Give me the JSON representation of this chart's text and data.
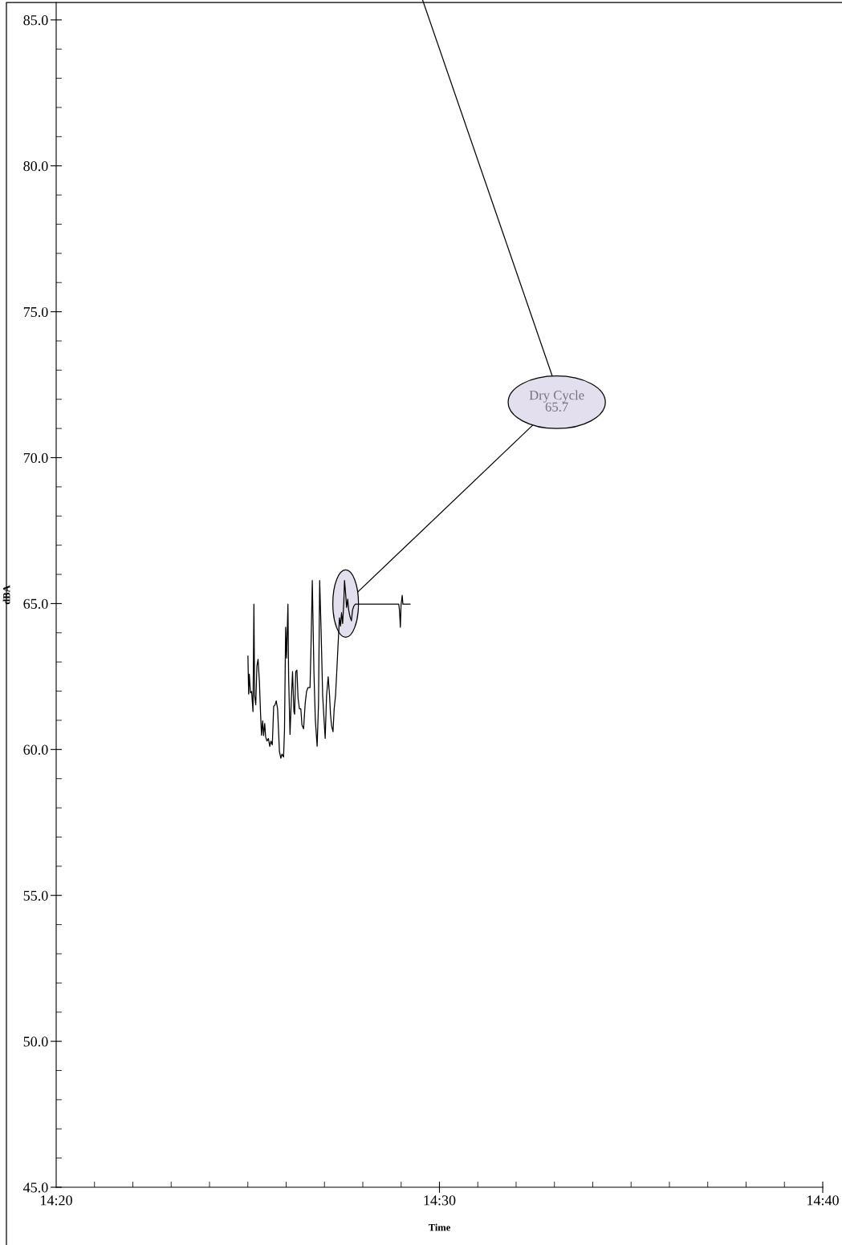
{
  "chart_data": {
    "type": "line",
    "xlabel": "Time",
    "ylabel": "dBA",
    "xlim": [
      14.3333,
      14.6667
    ],
    "ylim": [
      45,
      85.6
    ],
    "xticks": [
      {
        "value": 14.3333,
        "label": "14:20"
      },
      {
        "value": 14.5,
        "label": "14:30"
      },
      {
        "value": 14.6667,
        "label": "14:40"
      }
    ],
    "yticks": [
      {
        "value": 45,
        "label": "45.0"
      },
      {
        "value": 50,
        "label": "50.0"
      },
      {
        "value": 55,
        "label": "55.0"
      },
      {
        "value": 60,
        "label": "60.0"
      },
      {
        "value": 65,
        "label": "65.0"
      },
      {
        "value": 70,
        "label": "70.0"
      },
      {
        "value": 75,
        "label": "75.0"
      },
      {
        "value": 80,
        "label": "80.0"
      },
      {
        "value": 85,
        "label": "85.0"
      }
    ],
    "grid": false,
    "legend": false,
    "marker": "none",
    "line_style": "solid",
    "annotations": [
      {
        "text": "Dry Cycle\n65.7",
        "x": 14.4592,
        "y": 65.0
      }
    ],
    "series": [
      {
        "color": "#000000",
        "x": [
          14.4167,
          14.417,
          14.4173,
          14.4178,
          14.4183,
          14.4189,
          14.4193,
          14.4196,
          14.4201,
          14.4206,
          14.4211,
          14.4217,
          14.4222,
          14.4226,
          14.4231,
          14.4235,
          14.424,
          14.4244,
          14.425,
          14.4256,
          14.4262,
          14.4267,
          14.4273,
          14.4279,
          14.4285,
          14.429,
          14.4296,
          14.4304,
          14.431,
          14.4315,
          14.4322,
          14.4326,
          14.4331,
          14.4335,
          14.4341,
          14.4344,
          14.435,
          14.4356,
          14.4361,
          14.4367,
          14.437,
          14.4375,
          14.438,
          14.4385,
          14.4391,
          14.4397,
          14.4402,
          14.4409,
          14.4416,
          14.4422,
          14.4428,
          14.4437,
          14.4441,
          14.4447,
          14.4454,
          14.446,
          14.4468,
          14.4474,
          14.4479,
          14.4485,
          14.4492,
          14.4498,
          14.4503,
          14.4509,
          14.4516,
          14.4522,
          14.4526,
          14.4531,
          14.4537,
          14.4542,
          14.4548,
          14.4554,
          14.4559,
          14.4565,
          14.457,
          14.4574,
          14.4579,
          14.4584,
          14.4587,
          14.4592,
          14.4596,
          14.4601,
          14.4605,
          14.4611,
          14.4617,
          14.4622,
          14.4628,
          14.4634,
          14.4823,
          14.4826,
          14.483,
          14.4833,
          14.4838,
          14.4841,
          14.4872
        ],
        "values": [
          63.2,
          61.9,
          62.58,
          61.94,
          61.99,
          61.3,
          64.98,
          61.85,
          61.53,
          62.86,
          63.09,
          62.31,
          61.21,
          60.49,
          60.98,
          60.48,
          60.89,
          60.43,
          60.29,
          60.38,
          60.11,
          60.29,
          60.16,
          61.48,
          61.53,
          61.67,
          61.39,
          59.93,
          59.7,
          59.84,
          59.74,
          60.66,
          64.19,
          63.13,
          64.98,
          62.49,
          60.52,
          61.76,
          62.67,
          61.3,
          61.21,
          62.67,
          62.72,
          61.76,
          61.39,
          61.39,
          60.84,
          60.71,
          61.58,
          61.99,
          62.12,
          62.12,
          63.41,
          65.79,
          62.67,
          61.03,
          60.11,
          61.58,
          65.79,
          64.14,
          61.85,
          61.03,
          60.38,
          61.85,
          62.49,
          61.85,
          61.21,
          60.8,
          60.61,
          61.39,
          61.85,
          62.77,
          63.59,
          64.51,
          64.23,
          64.69,
          64.32,
          65.06,
          65.79,
          65.33,
          64.87,
          65.15,
          64.78,
          64.55,
          64.41,
          64.78,
          64.92,
          64.98,
          64.98,
          64.78,
          64.19,
          64.96,
          65.28,
          64.98,
          64.98
        ]
      }
    ]
  }
}
